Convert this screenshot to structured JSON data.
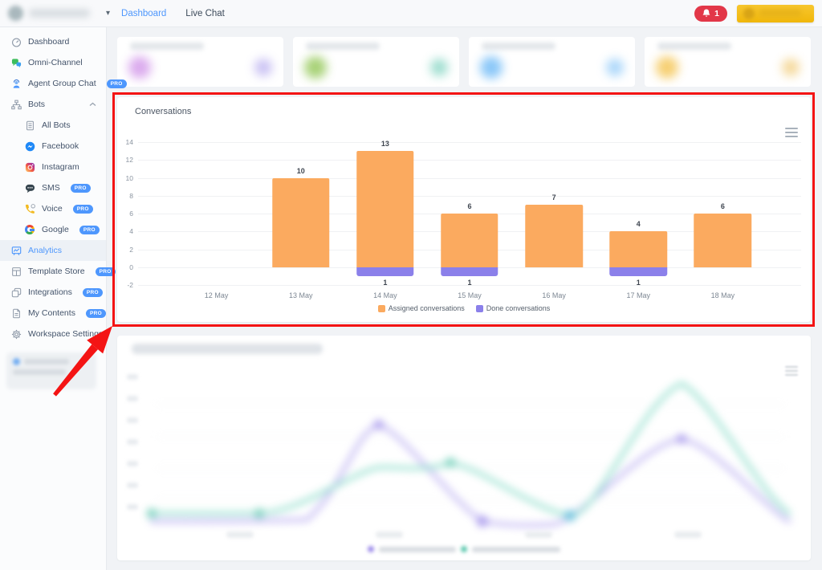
{
  "topbar": {
    "nav": [
      {
        "label": "Dashboard",
        "active": true
      },
      {
        "label": "Live Chat",
        "active": false
      }
    ],
    "notification_count": "1",
    "colors": {
      "active_link": "#4e97fd",
      "notification_bg": "#e23748",
      "upgrade_bg": "#f0b70b"
    }
  },
  "sidebar": {
    "pro_label": "PRO",
    "items": [
      {
        "label": "Dashboard"
      },
      {
        "label": "Omni-Channel"
      },
      {
        "label": "Agent Group Chat",
        "pro": true
      },
      {
        "label": "Bots",
        "expanded": true
      },
      {
        "label": "All Bots",
        "child": true
      },
      {
        "label": "Facebook",
        "child": true
      },
      {
        "label": "Instagram",
        "child": true
      },
      {
        "label": "SMS",
        "child": true,
        "pro": true
      },
      {
        "label": "Voice",
        "child": true,
        "pro": true
      },
      {
        "label": "Google",
        "child": true,
        "pro": true
      },
      {
        "label": "Analytics",
        "active": true
      },
      {
        "label": "Template Store",
        "pro": true
      },
      {
        "label": "Integrations",
        "pro": true
      },
      {
        "label": "My Contents",
        "pro": true
      },
      {
        "label": "Workspace Settings"
      }
    ]
  },
  "stats_row": {
    "blurred": true,
    "cards": [
      {
        "circle_colors": [
          "#cf8fe8",
          "#b9aef0"
        ]
      },
      {
        "circle_colors": [
          "#8bc34a",
          "#7fd3c0"
        ]
      },
      {
        "circle_colors": [
          "#64b5f6",
          "#90caf9"
        ]
      },
      {
        "circle_colors": [
          "#f4c044",
          "#f2cd7c"
        ]
      }
    ]
  },
  "chart_data": {
    "type": "bar",
    "title": "Conversations",
    "categories": [
      "12 May",
      "13 May",
      "14 May",
      "15 May",
      "16 May",
      "17 May",
      "18 May"
    ],
    "series": [
      {
        "name": "Assigned conversations",
        "color": "#fbaa5f",
        "direction": "up",
        "values": [
          0,
          10,
          13,
          6,
          7,
          4,
          6
        ]
      },
      {
        "name": "Done conversations",
        "color": "#8b80ea",
        "direction": "down",
        "values": [
          0,
          0,
          1,
          1,
          0,
          1,
          0
        ]
      }
    ],
    "ylim": [
      -2,
      14
    ],
    "ytick_step": 2,
    "grid": true,
    "legend_position": "bottom"
  },
  "bottom_chart": {
    "blurred": true,
    "type": "line",
    "line_colors": {
      "teal": "#7fd9c4",
      "purple": "#b4a7f0"
    }
  },
  "annotation": {
    "type": "rectangle-and-arrow",
    "color": "#f41414"
  }
}
